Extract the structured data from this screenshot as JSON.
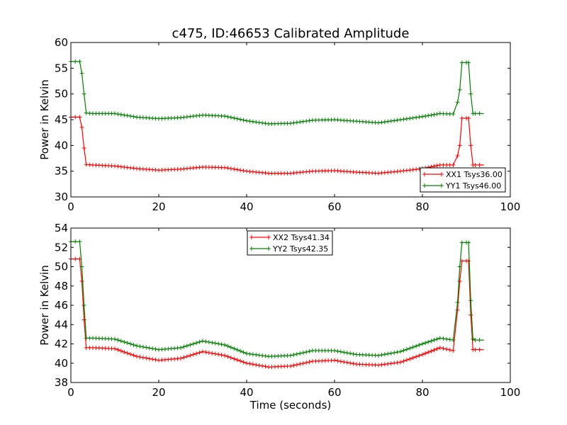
{
  "chart_data": [
    {
      "type": "line",
      "title": "c475, ID:46653 Calibrated Amplitude",
      "xlabel": "",
      "ylabel": "Power in Kelvin",
      "xlim": [
        0,
        100
      ],
      "ylim": [
        30,
        60
      ],
      "xticks": [
        "0",
        "20",
        "40",
        "60",
        "80",
        "100"
      ],
      "yticks": [
        "30",
        "35",
        "40",
        "45",
        "50",
        "55",
        "60"
      ],
      "legend_position": "lower-right",
      "series": [
        {
          "name": "XX1 Tsys36.00",
          "color": "#ff0000",
          "marker": "plus",
          "x": [
            0,
            1,
            2,
            2.5,
            3,
            3.5,
            5,
            10,
            15,
            20,
            25,
            30,
            35,
            40,
            45,
            50,
            55,
            60,
            65,
            70,
            75,
            80,
            84,
            87,
            88,
            88.5,
            89,
            90,
            90.5,
            91,
            91.5,
            92,
            93,
            94
          ],
          "y": [
            45.5,
            45.5,
            45.5,
            43.5,
            39.5,
            36.3,
            36.2,
            36.0,
            35.5,
            35.2,
            35.4,
            35.8,
            35.7,
            35.0,
            34.6,
            34.6,
            35.0,
            35.1,
            34.8,
            34.6,
            35.0,
            35.5,
            36.2,
            36.2,
            38.0,
            40.0,
            45.3,
            45.3,
            45.3,
            40.0,
            36.2,
            36.2,
            36.2,
            36.2
          ]
        },
        {
          "name": "YY1 Tsys46.00",
          "color": "#008000",
          "marker": "plus",
          "x": [
            0,
            1,
            2,
            2.5,
            3,
            3.5,
            5,
            10,
            15,
            20,
            25,
            30,
            35,
            40,
            45,
            50,
            55,
            60,
            65,
            70,
            75,
            80,
            84,
            87,
            88,
            88.5,
            89,
            90,
            90.5,
            91,
            91.5,
            92,
            93,
            94
          ],
          "y": [
            56.3,
            56.3,
            56.3,
            54.0,
            50.0,
            46.3,
            46.2,
            46.2,
            45.5,
            45.2,
            45.4,
            45.9,
            45.7,
            44.8,
            44.2,
            44.3,
            44.9,
            45.0,
            44.7,
            44.4,
            45.0,
            45.6,
            46.2,
            46.1,
            48.4,
            50.8,
            56.1,
            56.1,
            56.1,
            50.0,
            46.2,
            46.2,
            46.2,
            46.2
          ]
        }
      ]
    },
    {
      "type": "line",
      "title": "",
      "xlabel": "Time (seconds)",
      "ylabel": "Power in Kelvin",
      "xlim": [
        0,
        100
      ],
      "ylim": [
        38,
        54
      ],
      "xticks": [
        "0",
        "20",
        "40",
        "60",
        "80",
        "100"
      ],
      "yticks": [
        "38",
        "40",
        "42",
        "44",
        "46",
        "48",
        "50",
        "52",
        "54"
      ],
      "legend_position": "upper-center",
      "series": [
        {
          "name": "XX2 Tsys41.34",
          "color": "#ff0000",
          "marker": "plus",
          "x": [
            0,
            1,
            2,
            2.5,
            3,
            3.5,
            5,
            10,
            15,
            20,
            25,
            30,
            35,
            40,
            45,
            50,
            55,
            60,
            65,
            70,
            75,
            80,
            84,
            87,
            88,
            88.5,
            89,
            90,
            90.5,
            91,
            91.5,
            92,
            93,
            94
          ],
          "y": [
            50.8,
            50.8,
            50.8,
            48.5,
            44.5,
            41.6,
            41.6,
            41.5,
            40.7,
            40.3,
            40.5,
            41.2,
            40.8,
            40.0,
            39.6,
            39.7,
            40.2,
            40.3,
            39.9,
            39.8,
            40.1,
            40.9,
            41.6,
            41.3,
            45.5,
            48.5,
            50.6,
            50.6,
            50.6,
            45.0,
            41.4,
            41.4,
            41.4,
            41.4
          ]
        },
        {
          "name": "YY2 Tsys42.35",
          "color": "#008000",
          "marker": "plus",
          "x": [
            0,
            1,
            2,
            2.5,
            3,
            3.5,
            5,
            10,
            15,
            20,
            25,
            30,
            35,
            40,
            45,
            50,
            55,
            60,
            65,
            70,
            75,
            80,
            84,
            87,
            88,
            88.5,
            89,
            90,
            90.5,
            91,
            91.5,
            92,
            93,
            94
          ],
          "y": [
            52.6,
            52.6,
            52.6,
            50.0,
            46.0,
            42.6,
            42.6,
            42.5,
            41.8,
            41.4,
            41.6,
            42.3,
            41.9,
            41.0,
            40.7,
            40.8,
            41.3,
            41.3,
            40.9,
            40.8,
            41.2,
            42.0,
            42.6,
            42.4,
            46.3,
            50.0,
            52.5,
            52.5,
            52.5,
            46.5,
            42.5,
            42.4,
            42.4,
            42.4
          ]
        }
      ]
    }
  ]
}
